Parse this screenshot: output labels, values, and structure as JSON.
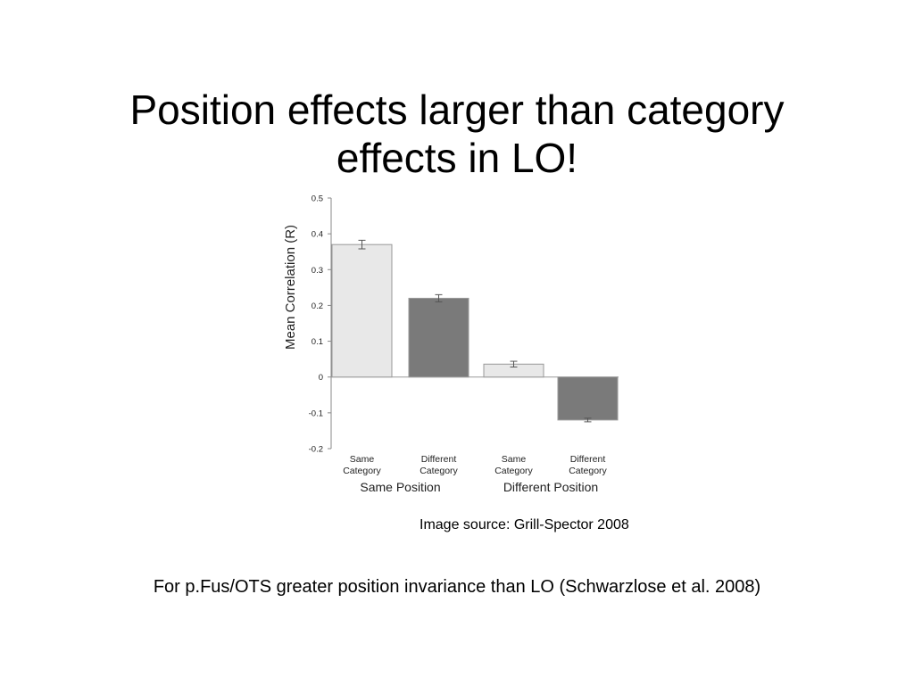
{
  "slide": {
    "title_line1": "Position effects larger than category",
    "title_line2": "effects in LO!",
    "source": "Image source: Grill-Spector 2008",
    "footnote": "For p.Fus/OTS greater position invariance than LO (Schwarzlose et al. 2008)"
  },
  "chart_data": {
    "type": "bar",
    "ylabel": "Mean Correlation (R)",
    "ylim": [
      -0.2,
      0.5
    ],
    "yticks": [
      0.5,
      0.4,
      0.3,
      0.2,
      0.1,
      0,
      -0.1,
      -0.2
    ],
    "ytick_labels": [
      "0.5",
      "0.4",
      "0.3",
      "0.2",
      "0.1",
      "0",
      "-0.1",
      "-0.2"
    ],
    "grid": false,
    "categories": [
      [
        "Same",
        "Category"
      ],
      [
        "Different",
        "Category"
      ],
      [
        "Same",
        "Category"
      ],
      [
        "Different",
        "Category"
      ]
    ],
    "groups": [
      "Same Position",
      "Different Position"
    ],
    "values": [
      0.37,
      0.22,
      0.036,
      -0.12
    ],
    "errors": [
      0.012,
      0.01,
      0.008,
      0.005
    ],
    "colors": [
      "#e8e8e8",
      "#7a7a7a",
      "#e8e8e8",
      "#7a7a7a"
    ]
  }
}
